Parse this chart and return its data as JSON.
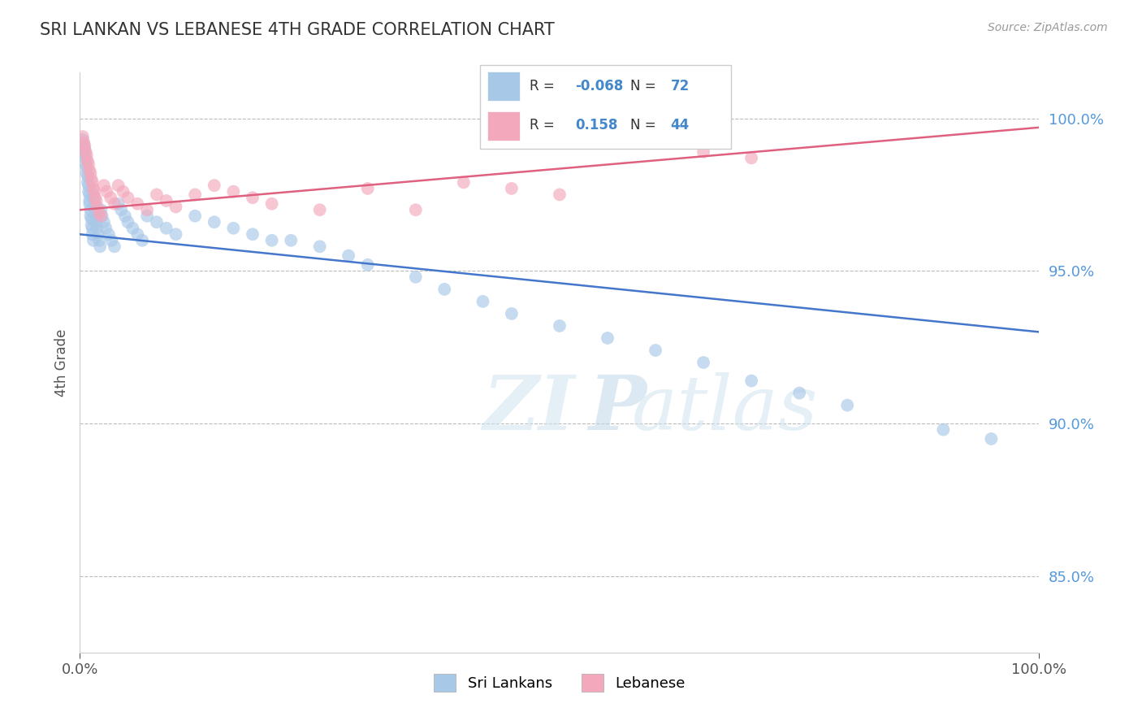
{
  "title": "SRI LANKAN VS LEBANESE 4TH GRADE CORRELATION CHART",
  "source": "Source: ZipAtlas.com",
  "ylabel": "4th Grade",
  "xlim": [
    0.0,
    1.0
  ],
  "ylim": [
    0.825,
    1.015
  ],
  "sri_lankan_color": "#a8c8e8",
  "lebanese_color": "#f4a8bc",
  "sri_lankan_line_color": "#4477cc",
  "lebanese_line_color": "#e06080",
  "background_color": "#ffffff",
  "right_tick_color": "#5599dd",
  "legend_R_sri": "-0.068",
  "legend_N_sri": "72",
  "legend_R_leb": "0.158",
  "legend_N_leb": "44",
  "sri_lankans_label": "Sri Lankans",
  "lebanese_label": "Lebanese",
  "watermark_zi": "ZI",
  "watermark_p": "P",
  "watermark_atlas": "atlas",
  "ytick_vals": [
    0.85,
    0.9,
    0.95,
    1.0
  ],
  "ytick_labels": [
    "85.0%",
    "90.0%",
    "95.0%",
    "100.0%"
  ],
  "sri_lankan_x": [
    0.003,
    0.004,
    0.005,
    0.005,
    0.006,
    0.006,
    0.007,
    0.007,
    0.008,
    0.008,
    0.009,
    0.009,
    0.01,
    0.01,
    0.01,
    0.011,
    0.011,
    0.012,
    0.012,
    0.013,
    0.013,
    0.014,
    0.014,
    0.015,
    0.015,
    0.016,
    0.016,
    0.017,
    0.018,
    0.019,
    0.02,
    0.021,
    0.022,
    0.023,
    0.025,
    0.027,
    0.03,
    0.033,
    0.036,
    0.04,
    0.043,
    0.047,
    0.05,
    0.055,
    0.06,
    0.065,
    0.07,
    0.08,
    0.09,
    0.1,
    0.12,
    0.14,
    0.16,
    0.18,
    0.2,
    0.22,
    0.25,
    0.28,
    0.3,
    0.35,
    0.38,
    0.42,
    0.45,
    0.5,
    0.55,
    0.6,
    0.65,
    0.7,
    0.75,
    0.8,
    0.9,
    0.95
  ],
  "sri_lankan_y": [
    0.993,
    0.991,
    0.99,
    0.988,
    0.987,
    0.985,
    0.984,
    0.982,
    0.981,
    0.979,
    0.978,
    0.976,
    0.975,
    0.973,
    0.972,
    0.97,
    0.968,
    0.967,
    0.965,
    0.964,
    0.962,
    0.96,
    0.975,
    0.973,
    0.971,
    0.969,
    0.968,
    0.966,
    0.964,
    0.962,
    0.96,
    0.958,
    0.97,
    0.968,
    0.966,
    0.964,
    0.962,
    0.96,
    0.958,
    0.972,
    0.97,
    0.968,
    0.966,
    0.964,
    0.962,
    0.96,
    0.968,
    0.966,
    0.964,
    0.962,
    0.968,
    0.966,
    0.964,
    0.962,
    0.96,
    0.96,
    0.958,
    0.955,
    0.952,
    0.948,
    0.944,
    0.94,
    0.936,
    0.932,
    0.928,
    0.924,
    0.92,
    0.914,
    0.91,
    0.906,
    0.898,
    0.895
  ],
  "lebanese_x": [
    0.003,
    0.004,
    0.005,
    0.006,
    0.007,
    0.008,
    0.009,
    0.01,
    0.011,
    0.012,
    0.013,
    0.014,
    0.015,
    0.016,
    0.017,
    0.018,
    0.02,
    0.022,
    0.025,
    0.028,
    0.032,
    0.036,
    0.04,
    0.045,
    0.05,
    0.06,
    0.07,
    0.08,
    0.09,
    0.1,
    0.12,
    0.14,
    0.16,
    0.18,
    0.2,
    0.25,
    0.3,
    0.35,
    0.4,
    0.45,
    0.5,
    0.55,
    0.65,
    0.7
  ],
  "lebanese_y": [
    0.994,
    0.992,
    0.991,
    0.989,
    0.988,
    0.986,
    0.985,
    0.983,
    0.982,
    0.98,
    0.979,
    0.977,
    0.976,
    0.974,
    0.973,
    0.971,
    0.969,
    0.968,
    0.978,
    0.976,
    0.974,
    0.972,
    0.978,
    0.976,
    0.974,
    0.972,
    0.97,
    0.975,
    0.973,
    0.971,
    0.975,
    0.978,
    0.976,
    0.974,
    0.972,
    0.97,
    0.977,
    0.97,
    0.979,
    0.977,
    0.975,
    0.993,
    0.989,
    0.987
  ]
}
